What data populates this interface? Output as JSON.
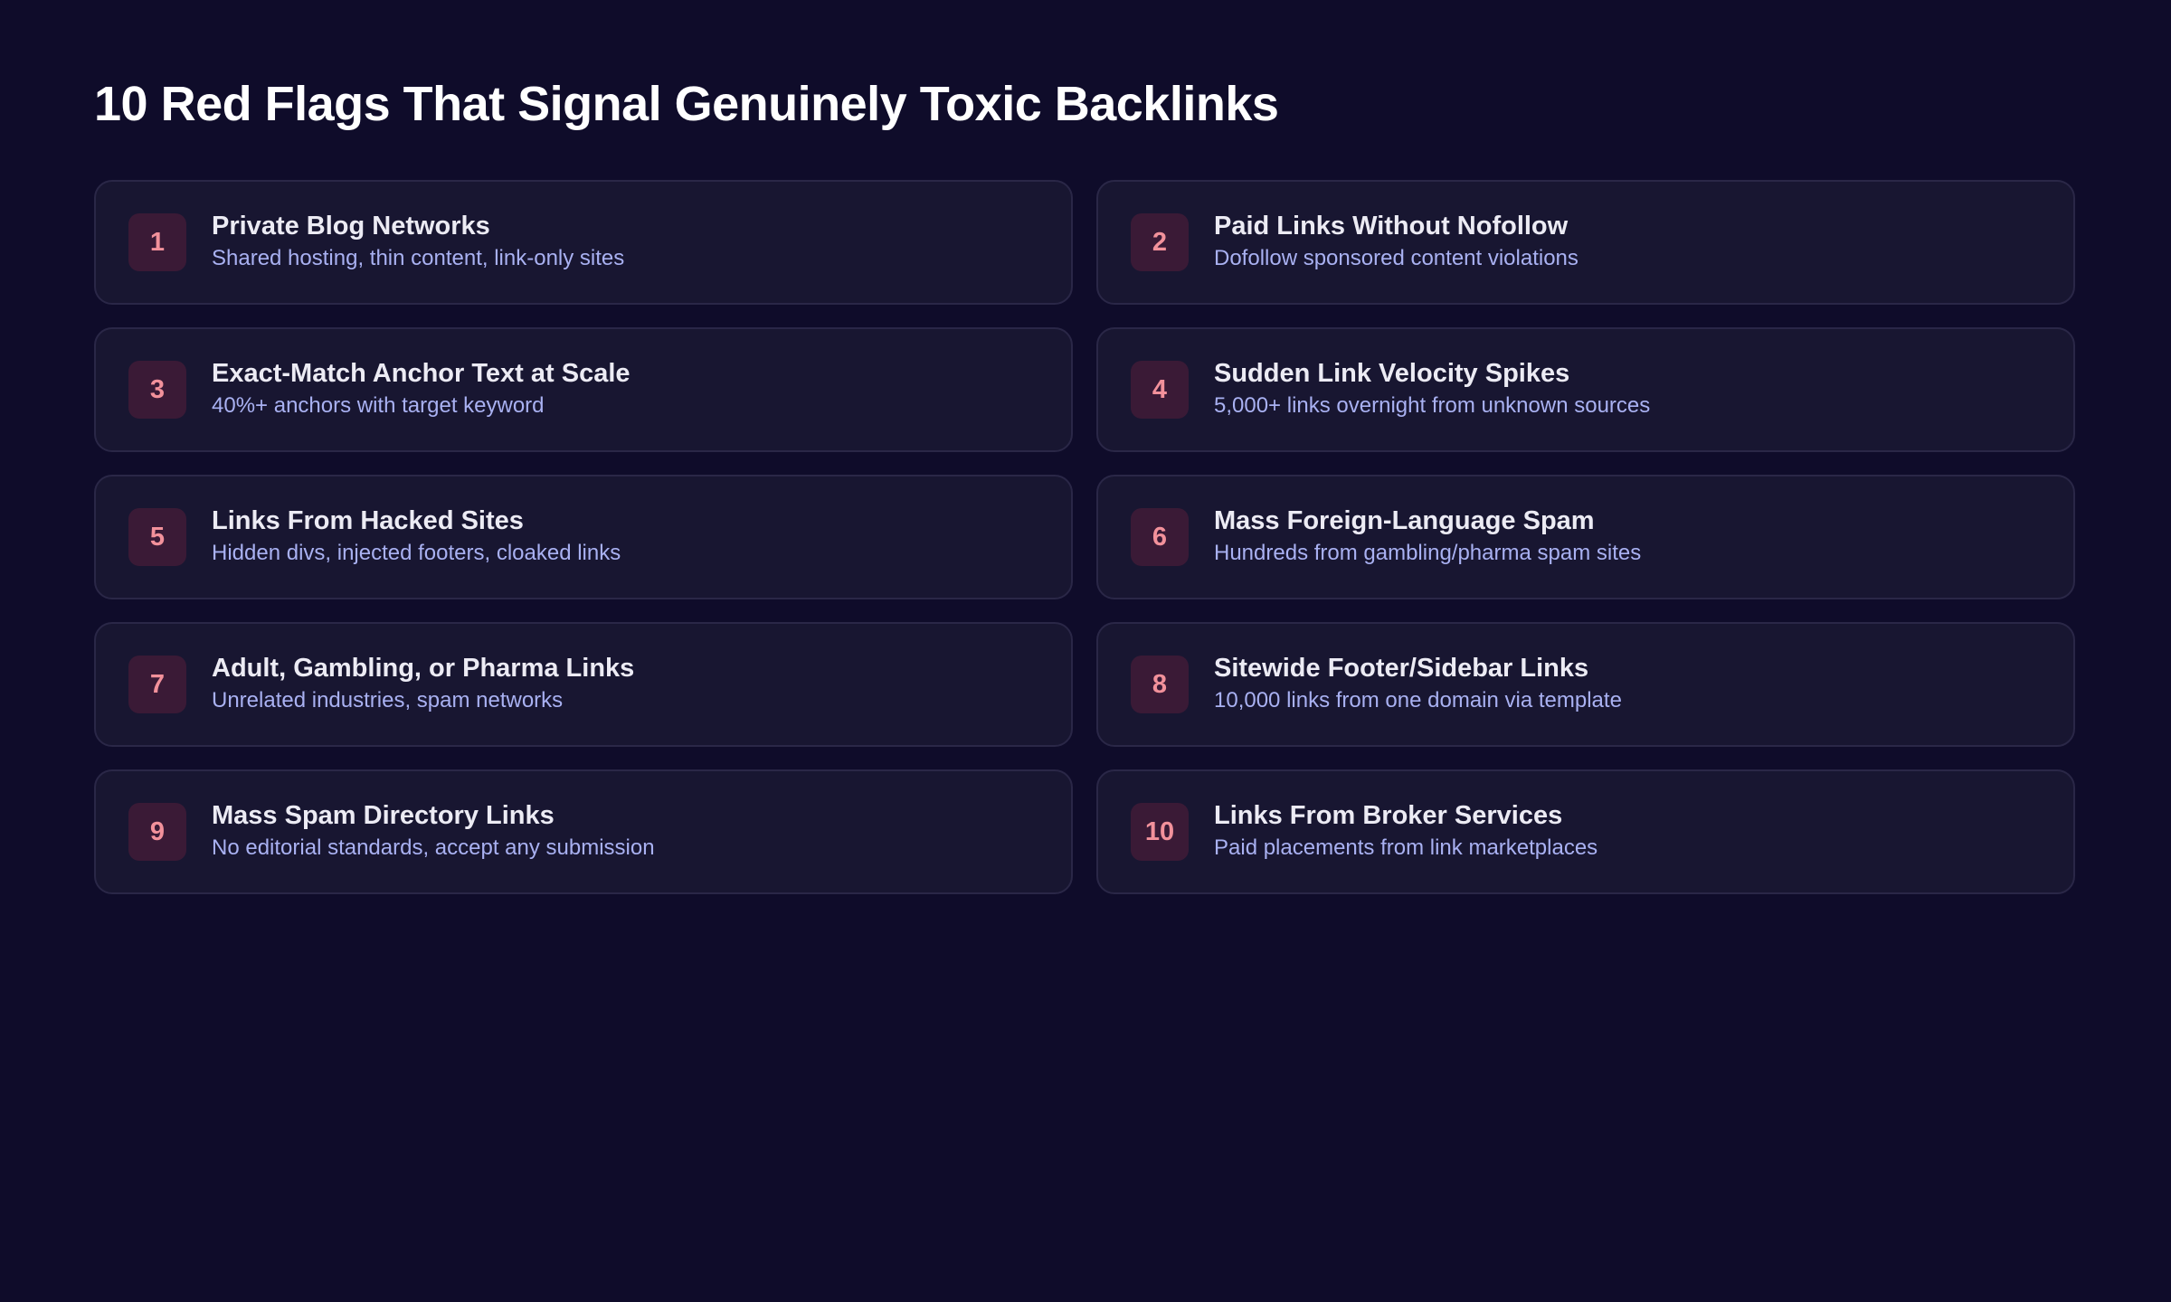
{
  "header": {
    "title": "10 Red Flags That Signal Genuinely Toxic Backlinks"
  },
  "items": [
    {
      "number": 1,
      "title": "Private Blog Networks",
      "description": "Shared hosting, thin content, link-only sites"
    },
    {
      "number": 2,
      "title": "Paid Links Without Nofollow",
      "description": "Dofollow sponsored content violations"
    },
    {
      "number": 3,
      "title": "Exact-Match Anchor Text at Scale",
      "description": "40%+ anchors with target keyword"
    },
    {
      "number": 4,
      "title": "Sudden Link Velocity Spikes",
      "description": "5,000+ links overnight from unknown sources"
    },
    {
      "number": 5,
      "title": "Links From Hacked Sites",
      "description": "Hidden divs, injected footers, cloaked links"
    },
    {
      "number": 6,
      "title": "Mass Foreign-Language Spam",
      "description": "Hundreds from gambling/pharma spam sites"
    },
    {
      "number": 7,
      "title": "Adult, Gambling, or Pharma Links",
      "description": "Unrelated industries, spam networks"
    },
    {
      "number": 8,
      "title": "Sitewide Footer/Sidebar Links",
      "description": "10,000 links from one domain via template"
    },
    {
      "number": 9,
      "title": "Mass Spam Directory Links",
      "description": "No editorial standards, accept any submission"
    },
    {
      "number": 10,
      "title": "Links From Broker Services",
      "description": "Paid placements from link marketplaces"
    }
  ]
}
